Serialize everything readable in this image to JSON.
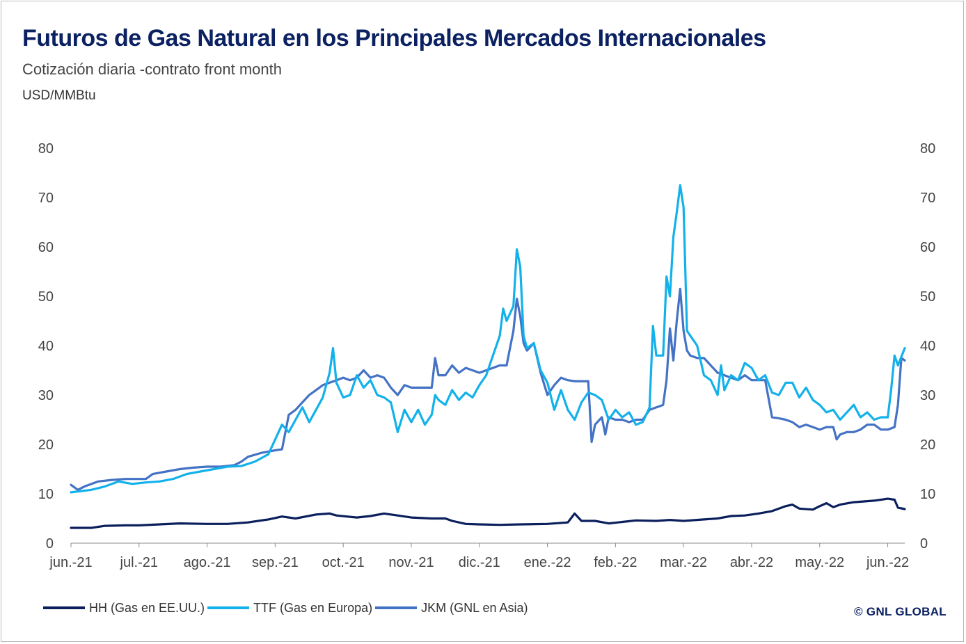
{
  "header": {
    "title": "Futuros de Gas Natural en los Principales Mercados Internacionales",
    "subtitle": "Cotización diaria -contrato front month",
    "unit_label": "USD/MMBtu"
  },
  "credit": "© GNL GLOBAL",
  "chart_data": {
    "type": "line",
    "title": "Futuros de Gas Natural en los Principales Mercados Internacionales",
    "subtitle": "Cotización diaria -contrato front month",
    "ylabel": "USD/MMBtu",
    "ylim": [
      0,
      80
    ],
    "yticks": [
      0,
      10,
      20,
      30,
      40,
      50,
      60,
      70,
      80
    ],
    "secondary_y_axis": true,
    "xlim": [
      0,
      12.25
    ],
    "x_unit": "months since jun.-21",
    "xticks": [
      {
        "x": 0,
        "label": "jun.-21"
      },
      {
        "x": 1,
        "label": "jul.-21"
      },
      {
        "x": 2,
        "label": "ago.-21"
      },
      {
        "x": 3,
        "label": "sep.-21"
      },
      {
        "x": 4,
        "label": "oct.-21"
      },
      {
        "x": 5,
        "label": "nov.-21"
      },
      {
        "x": 6,
        "label": "dic.-21"
      },
      {
        "x": 7,
        "label": "ene.-22"
      },
      {
        "x": 8,
        "label": "feb.-22"
      },
      {
        "x": 9,
        "label": "mar.-22"
      },
      {
        "x": 10,
        "label": "abr.-22"
      },
      {
        "x": 11,
        "label": "may.-22"
      },
      {
        "x": 12,
        "label": "jun.-22"
      }
    ],
    "grid": false,
    "legend_position": "bottom-left",
    "series": [
      {
        "name": "HH (Gas en EE.UU.)",
        "color": "#0b1f5c",
        "points": [
          [
            0,
            3.1
          ],
          [
            0.3,
            3.1
          ],
          [
            0.5,
            3.5
          ],
          [
            0.8,
            3.6
          ],
          [
            1.0,
            3.6
          ],
          [
            1.3,
            3.8
          ],
          [
            1.6,
            4.0
          ],
          [
            2.0,
            3.9
          ],
          [
            2.3,
            3.9
          ],
          [
            2.6,
            4.2
          ],
          [
            2.9,
            4.8
          ],
          [
            3.1,
            5.4
          ],
          [
            3.3,
            5.0
          ],
          [
            3.6,
            5.8
          ],
          [
            3.8,
            6.0
          ],
          [
            3.9,
            5.6
          ],
          [
            4.2,
            5.2
          ],
          [
            4.4,
            5.5
          ],
          [
            4.6,
            6.0
          ],
          [
            4.8,
            5.6
          ],
          [
            5.0,
            5.2
          ],
          [
            5.3,
            5.0
          ],
          [
            5.5,
            5.0
          ],
          [
            5.6,
            4.5
          ],
          [
            5.8,
            3.9
          ],
          [
            6.0,
            3.8
          ],
          [
            6.3,
            3.7
          ],
          [
            6.6,
            3.8
          ],
          [
            7.0,
            3.9
          ],
          [
            7.3,
            4.2
          ],
          [
            7.4,
            6.0
          ],
          [
            7.5,
            4.5
          ],
          [
            7.7,
            4.5
          ],
          [
            7.9,
            4.0
          ],
          [
            8.1,
            4.3
          ],
          [
            8.3,
            4.6
          ],
          [
            8.6,
            4.5
          ],
          [
            8.8,
            4.7
          ],
          [
            9.0,
            4.5
          ],
          [
            9.3,
            4.8
          ],
          [
            9.5,
            5.0
          ],
          [
            9.7,
            5.5
          ],
          [
            9.9,
            5.6
          ],
          [
            10.1,
            6.0
          ],
          [
            10.3,
            6.5
          ],
          [
            10.5,
            7.5
          ],
          [
            10.6,
            7.8
          ],
          [
            10.7,
            7.0
          ],
          [
            10.9,
            6.8
          ],
          [
            11.0,
            7.5
          ],
          [
            11.1,
            8.1
          ],
          [
            11.2,
            7.3
          ],
          [
            11.3,
            7.8
          ],
          [
            11.5,
            8.3
          ],
          [
            11.7,
            8.5
          ],
          [
            11.8,
            8.6
          ],
          [
            12.0,
            9.0
          ],
          [
            12.1,
            8.8
          ],
          [
            12.15,
            7.2
          ],
          [
            12.25,
            6.9
          ]
        ]
      },
      {
        "name": "TTF (Gas en Europa)",
        "color": "#13b1ea",
        "points": [
          [
            0,
            10.3
          ],
          [
            0.3,
            10.8
          ],
          [
            0.5,
            11.5
          ],
          [
            0.7,
            12.5
          ],
          [
            0.9,
            12.0
          ],
          [
            1.1,
            12.3
          ],
          [
            1.3,
            12.5
          ],
          [
            1.5,
            13.0
          ],
          [
            1.7,
            14.0
          ],
          [
            1.9,
            14.5
          ],
          [
            2.1,
            15.0
          ],
          [
            2.3,
            15.5
          ],
          [
            2.5,
            15.6
          ],
          [
            2.7,
            16.5
          ],
          [
            2.9,
            18.0
          ],
          [
            3.0,
            21.0
          ],
          [
            3.1,
            24.0
          ],
          [
            3.2,
            22.5
          ],
          [
            3.3,
            25.0
          ],
          [
            3.4,
            27.5
          ],
          [
            3.5,
            24.5
          ],
          [
            3.6,
            27.0
          ],
          [
            3.7,
            29.5
          ],
          [
            3.8,
            34.5
          ],
          [
            3.85,
            39.5
          ],
          [
            3.9,
            32.5
          ],
          [
            4.0,
            29.5
          ],
          [
            4.1,
            30.0
          ],
          [
            4.2,
            34.0
          ],
          [
            4.3,
            31.5
          ],
          [
            4.4,
            33.0
          ],
          [
            4.5,
            30.0
          ],
          [
            4.6,
            29.5
          ],
          [
            4.7,
            28.5
          ],
          [
            4.8,
            22.5
          ],
          [
            4.9,
            27.0
          ],
          [
            5.0,
            24.5
          ],
          [
            5.1,
            27.0
          ],
          [
            5.2,
            24.0
          ],
          [
            5.3,
            26.0
          ],
          [
            5.35,
            30.0
          ],
          [
            5.4,
            29.0
          ],
          [
            5.5,
            28.0
          ],
          [
            5.6,
            31.0
          ],
          [
            5.7,
            29.0
          ],
          [
            5.8,
            30.5
          ],
          [
            5.9,
            29.5
          ],
          [
            6.0,
            32.0
          ],
          [
            6.1,
            34.0
          ],
          [
            6.2,
            38.0
          ],
          [
            6.3,
            42.0
          ],
          [
            6.35,
            47.5
          ],
          [
            6.4,
            45.0
          ],
          [
            6.5,
            48.0
          ],
          [
            6.55,
            59.5
          ],
          [
            6.6,
            56.0
          ],
          [
            6.65,
            42.0
          ],
          [
            6.7,
            39.5
          ],
          [
            6.8,
            40.5
          ],
          [
            6.9,
            35.0
          ],
          [
            7.0,
            32.5
          ],
          [
            7.1,
            27.0
          ],
          [
            7.2,
            31.0
          ],
          [
            7.3,
            27.0
          ],
          [
            7.4,
            25.0
          ],
          [
            7.5,
            28.5
          ],
          [
            7.6,
            30.5
          ],
          [
            7.7,
            30.0
          ],
          [
            7.8,
            29.0
          ],
          [
            7.9,
            25.0
          ],
          [
            8.0,
            27.0
          ],
          [
            8.1,
            25.5
          ],
          [
            8.2,
            26.5
          ],
          [
            8.3,
            24.0
          ],
          [
            8.4,
            24.5
          ],
          [
            8.5,
            27.5
          ],
          [
            8.55,
            44.0
          ],
          [
            8.6,
            38.0
          ],
          [
            8.7,
            38.0
          ],
          [
            8.75,
            54.0
          ],
          [
            8.8,
            50.0
          ],
          [
            8.85,
            62.0
          ],
          [
            8.9,
            67.0
          ],
          [
            8.95,
            72.5
          ],
          [
            9.0,
            68.0
          ],
          [
            9.05,
            43.0
          ],
          [
            9.1,
            42.0
          ],
          [
            9.2,
            40.0
          ],
          [
            9.3,
            34.0
          ],
          [
            9.4,
            33.0
          ],
          [
            9.5,
            30.0
          ],
          [
            9.55,
            36.0
          ],
          [
            9.6,
            31.0
          ],
          [
            9.7,
            34.0
          ],
          [
            9.8,
            33.0
          ],
          [
            9.9,
            36.5
          ],
          [
            10.0,
            35.5
          ],
          [
            10.1,
            33.0
          ],
          [
            10.2,
            34.0
          ],
          [
            10.3,
            30.5
          ],
          [
            10.4,
            30.0
          ],
          [
            10.5,
            32.5
          ],
          [
            10.6,
            32.5
          ],
          [
            10.7,
            29.5
          ],
          [
            10.8,
            31.5
          ],
          [
            10.9,
            29.0
          ],
          [
            11.0,
            28.0
          ],
          [
            11.1,
            26.5
          ],
          [
            11.2,
            27.0
          ],
          [
            11.3,
            25.0
          ],
          [
            11.4,
            26.5
          ],
          [
            11.5,
            28.0
          ],
          [
            11.6,
            25.5
          ],
          [
            11.7,
            26.5
          ],
          [
            11.8,
            25.0
          ],
          [
            11.9,
            25.5
          ],
          [
            12.0,
            25.5
          ],
          [
            12.05,
            31.0
          ],
          [
            12.1,
            38.0
          ],
          [
            12.15,
            36.0
          ],
          [
            12.25,
            39.5
          ]
        ]
      },
      {
        "name": "JKM (GNL en Asia)",
        "color": "#4472c4",
        "points": [
          [
            0,
            11.8
          ],
          [
            0.1,
            10.8
          ],
          [
            0.2,
            11.5
          ],
          [
            0.4,
            12.5
          ],
          [
            0.6,
            12.8
          ],
          [
            0.8,
            13.0
          ],
          [
            1.0,
            13.0
          ],
          [
            1.1,
            13.0
          ],
          [
            1.2,
            14.0
          ],
          [
            1.4,
            14.5
          ],
          [
            1.6,
            15.0
          ],
          [
            1.8,
            15.3
          ],
          [
            2.0,
            15.5
          ],
          [
            2.2,
            15.5
          ],
          [
            2.4,
            15.8
          ],
          [
            2.5,
            16.5
          ],
          [
            2.6,
            17.5
          ],
          [
            2.8,
            18.3
          ],
          [
            3.0,
            18.8
          ],
          [
            3.1,
            19.0
          ],
          [
            3.15,
            22.5
          ],
          [
            3.2,
            26.0
          ],
          [
            3.3,
            27.0
          ],
          [
            3.4,
            28.5
          ],
          [
            3.5,
            30.0
          ],
          [
            3.6,
            31.0
          ],
          [
            3.7,
            32.0
          ],
          [
            3.8,
            32.5
          ],
          [
            3.9,
            33.0
          ],
          [
            4.0,
            33.5
          ],
          [
            4.1,
            33.0
          ],
          [
            4.2,
            33.5
          ],
          [
            4.3,
            35.0
          ],
          [
            4.4,
            33.5
          ],
          [
            4.5,
            34.0
          ],
          [
            4.6,
            33.5
          ],
          [
            4.7,
            31.5
          ],
          [
            4.8,
            30.0
          ],
          [
            4.9,
            32.0
          ],
          [
            5.0,
            31.5
          ],
          [
            5.1,
            31.5
          ],
          [
            5.2,
            31.5
          ],
          [
            5.3,
            31.5
          ],
          [
            5.35,
            37.5
          ],
          [
            5.4,
            34.0
          ],
          [
            5.5,
            34.0
          ],
          [
            5.6,
            36.0
          ],
          [
            5.7,
            34.5
          ],
          [
            5.8,
            35.5
          ],
          [
            5.9,
            35.0
          ],
          [
            6.0,
            34.5
          ],
          [
            6.1,
            35.0
          ],
          [
            6.2,
            35.5
          ],
          [
            6.3,
            36.0
          ],
          [
            6.4,
            36.0
          ],
          [
            6.5,
            43.0
          ],
          [
            6.55,
            49.5
          ],
          [
            6.6,
            46.0
          ],
          [
            6.65,
            40.5
          ],
          [
            6.7,
            39.0
          ],
          [
            6.8,
            40.5
          ],
          [
            6.9,
            34.5
          ],
          [
            7.0,
            30.0
          ],
          [
            7.1,
            32.0
          ],
          [
            7.2,
            33.5
          ],
          [
            7.3,
            33.0
          ],
          [
            7.4,
            32.8
          ],
          [
            7.5,
            32.8
          ],
          [
            7.6,
            32.8
          ],
          [
            7.65,
            20.5
          ],
          [
            7.7,
            24.0
          ],
          [
            7.8,
            25.5
          ],
          [
            7.85,
            22.0
          ],
          [
            7.9,
            25.5
          ],
          [
            8.0,
            25.0
          ],
          [
            8.1,
            25.0
          ],
          [
            8.2,
            24.5
          ],
          [
            8.3,
            25.0
          ],
          [
            8.4,
            25.0
          ],
          [
            8.5,
            27.0
          ],
          [
            8.6,
            27.5
          ],
          [
            8.7,
            28.0
          ],
          [
            8.75,
            33.0
          ],
          [
            8.8,
            43.5
          ],
          [
            8.85,
            37.0
          ],
          [
            8.9,
            45.0
          ],
          [
            8.95,
            51.5
          ],
          [
            9.0,
            43.0
          ],
          [
            9.05,
            39.0
          ],
          [
            9.1,
            38.0
          ],
          [
            9.2,
            37.5
          ],
          [
            9.3,
            37.5
          ],
          [
            9.4,
            36.0
          ],
          [
            9.5,
            34.5
          ],
          [
            9.6,
            34.0
          ],
          [
            9.7,
            33.5
          ],
          [
            9.8,
            33.0
          ],
          [
            9.9,
            34.0
          ],
          [
            10.0,
            33.0
          ],
          [
            10.1,
            33.0
          ],
          [
            10.2,
            33.0
          ],
          [
            10.3,
            25.5
          ],
          [
            10.4,
            25.3
          ],
          [
            10.5,
            25.0
          ],
          [
            10.6,
            24.5
          ],
          [
            10.7,
            23.5
          ],
          [
            10.8,
            24.0
          ],
          [
            10.9,
            23.5
          ],
          [
            11.0,
            23.0
          ],
          [
            11.1,
            23.5
          ],
          [
            11.2,
            23.5
          ],
          [
            11.25,
            21.0
          ],
          [
            11.3,
            22.0
          ],
          [
            11.4,
            22.5
          ],
          [
            11.5,
            22.5
          ],
          [
            11.6,
            23.0
          ],
          [
            11.7,
            24.0
          ],
          [
            11.8,
            24.0
          ],
          [
            11.9,
            23.0
          ],
          [
            12.0,
            23.0
          ],
          [
            12.1,
            23.5
          ],
          [
            12.15,
            28.0
          ],
          [
            12.2,
            37.5
          ],
          [
            12.25,
            37.0
          ]
        ]
      }
    ]
  }
}
